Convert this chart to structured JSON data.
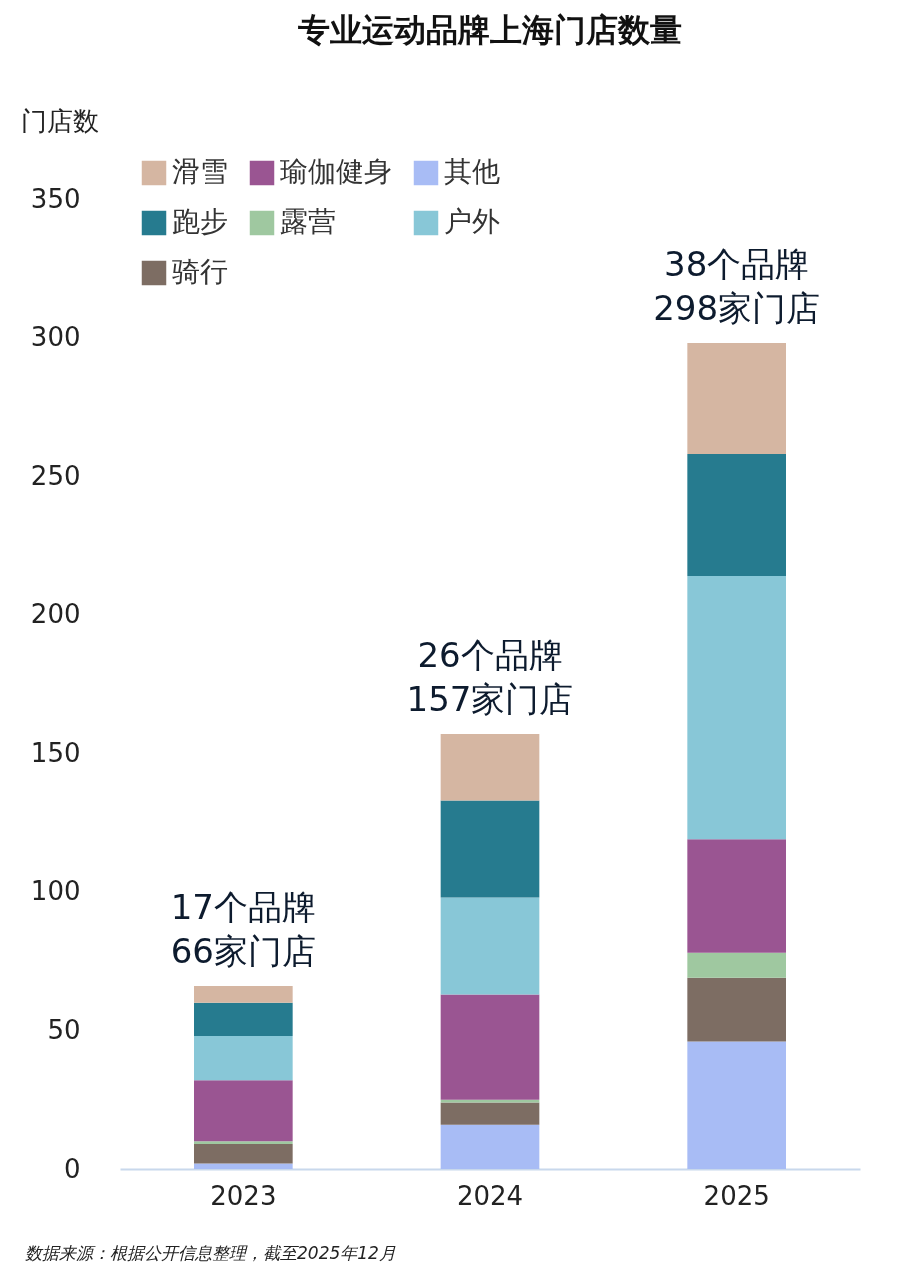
{
  "chart_data": {
    "type": "bar",
    "title": "专业运动品牌上海门店数量",
    "ylabel": "门店数",
    "categories": [
      "2023",
      "2024",
      "2025"
    ],
    "stacked": true,
    "series": [
      {
        "name": "其他",
        "color": "#a8bcf5",
        "values": [
          2,
          16,
          46
        ]
      },
      {
        "name": "骑行",
        "color": "#7d6d63",
        "values": [
          7,
          8,
          23
        ]
      },
      {
        "name": "露营",
        "color": "#9fc8a0",
        "values": [
          1,
          1,
          9
        ]
      },
      {
        "name": "瑜伽健身",
        "color": "#9a5592",
        "values": [
          22,
          38,
          41
        ]
      },
      {
        "name": "户外",
        "color": "#88c7d7",
        "values": [
          16,
          35,
          95
        ]
      },
      {
        "name": "跑步",
        "color": "#267b8f",
        "values": [
          12,
          35,
          44
        ]
      },
      {
        "name": "滑雪",
        "color": "#d5b6a2",
        "values": [
          6,
          24,
          40
        ]
      }
    ],
    "ylim": [
      0,
      350
    ],
    "yticks": [
      0,
      50,
      100,
      150,
      200,
      250,
      300,
      350
    ],
    "grid": false,
    "legend": "top left",
    "annotations": [
      {
        "text": "17个品牌\n66家门店",
        "x": "2023",
        "y": 66
      },
      {
        "text": "26个品牌\n157家门店",
        "x": "2024",
        "y": 157
      },
      {
        "text": "38个品牌\n298家门店",
        "x": "2025",
        "y": 298
      },
      "数据来源：根据公开信息整理，截至2025年12月"
    ]
  }
}
